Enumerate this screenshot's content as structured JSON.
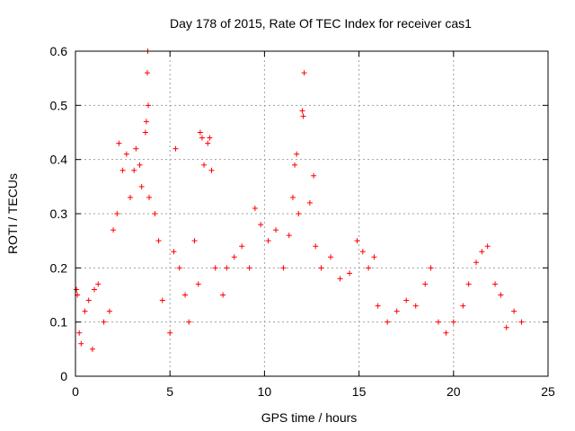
{
  "chart_data": {
    "type": "scatter",
    "title": "Day 178 of 2015, Rate Of TEC Index for receiver cas1",
    "xlabel": "GPS time / hours",
    "ylabel": "ROTI / TECUs",
    "xlim": [
      0,
      25
    ],
    "ylim": [
      0,
      0.6
    ],
    "grid": true,
    "x_ticks": [
      0,
      5,
      10,
      15,
      20,
      25
    ],
    "x_tick_labels": [
      "0",
      "5",
      "10",
      "15",
      "20",
      "25"
    ],
    "y_ticks": [
      0,
      0.1,
      0.2,
      0.3,
      0.4,
      0.5,
      0.6
    ],
    "y_tick_labels": [
      "0",
      "0.1",
      "0.2",
      "0.3",
      "0.4",
      "0.5",
      "0.6"
    ],
    "marker": "+",
    "color": "#ff0000",
    "series": [
      {
        "name": "ROTI",
        "points": [
          [
            0.05,
            0.16
          ],
          [
            0.1,
            0.15
          ],
          [
            0.2,
            0.08
          ],
          [
            0.3,
            0.06
          ],
          [
            0.5,
            0.12
          ],
          [
            0.7,
            0.14
          ],
          [
            0.9,
            0.05
          ],
          [
            1.0,
            0.16
          ],
          [
            1.2,
            0.17
          ],
          [
            1.5,
            0.1
          ],
          [
            1.8,
            0.12
          ],
          [
            2.0,
            0.27
          ],
          [
            2.2,
            0.3
          ],
          [
            2.3,
            0.43
          ],
          [
            2.5,
            0.38
          ],
          [
            2.7,
            0.41
          ],
          [
            2.9,
            0.33
          ],
          [
            3.1,
            0.38
          ],
          [
            3.2,
            0.42
          ],
          [
            3.4,
            0.39
          ],
          [
            3.5,
            0.35
          ],
          [
            3.7,
            0.45
          ],
          [
            3.75,
            0.47
          ],
          [
            3.8,
            0.56
          ],
          [
            3.82,
            0.6
          ],
          [
            3.85,
            0.5
          ],
          [
            3.9,
            0.33
          ],
          [
            4.2,
            0.3
          ],
          [
            4.4,
            0.25
          ],
          [
            4.6,
            0.14
          ],
          [
            5.0,
            0.08
          ],
          [
            5.2,
            0.23
          ],
          [
            5.3,
            0.42
          ],
          [
            5.5,
            0.2
          ],
          [
            5.8,
            0.15
          ],
          [
            6.0,
            0.1
          ],
          [
            6.3,
            0.25
          ],
          [
            6.5,
            0.17
          ],
          [
            6.6,
            0.45
          ],
          [
            6.7,
            0.44
          ],
          [
            6.8,
            0.39
          ],
          [
            7.0,
            0.43
          ],
          [
            7.1,
            0.44
          ],
          [
            7.2,
            0.38
          ],
          [
            7.4,
            0.2
          ],
          [
            7.8,
            0.15
          ],
          [
            8.0,
            0.2
          ],
          [
            8.4,
            0.22
          ],
          [
            8.8,
            0.24
          ],
          [
            9.2,
            0.2
          ],
          [
            9.5,
            0.31
          ],
          [
            9.8,
            0.28
          ],
          [
            10.2,
            0.25
          ],
          [
            10.6,
            0.27
          ],
          [
            11.0,
            0.2
          ],
          [
            11.3,
            0.26
          ],
          [
            11.5,
            0.33
          ],
          [
            11.6,
            0.39
          ],
          [
            11.7,
            0.41
          ],
          [
            11.8,
            0.3
          ],
          [
            12.0,
            0.49
          ],
          [
            12.1,
            0.56
          ],
          [
            12.05,
            0.48
          ],
          [
            12.4,
            0.32
          ],
          [
            12.6,
            0.37
          ],
          [
            12.7,
            0.24
          ],
          [
            13.0,
            0.2
          ],
          [
            13.5,
            0.22
          ],
          [
            14.0,
            0.18
          ],
          [
            14.5,
            0.19
          ],
          [
            14.9,
            0.25
          ],
          [
            15.2,
            0.23
          ],
          [
            15.5,
            0.2
          ],
          [
            15.8,
            0.22
          ],
          [
            16.0,
            0.13
          ],
          [
            16.5,
            0.1
          ],
          [
            17.0,
            0.12
          ],
          [
            17.5,
            0.14
          ],
          [
            18.0,
            0.13
          ],
          [
            18.5,
            0.17
          ],
          [
            18.8,
            0.2
          ],
          [
            19.2,
            0.1
          ],
          [
            19.6,
            0.08
          ],
          [
            20.0,
            0.1
          ],
          [
            20.5,
            0.13
          ],
          [
            20.8,
            0.17
          ],
          [
            21.2,
            0.21
          ],
          [
            21.5,
            0.23
          ],
          [
            21.8,
            0.24
          ],
          [
            22.2,
            0.17
          ],
          [
            22.5,
            0.15
          ],
          [
            22.8,
            0.09
          ],
          [
            23.2,
            0.12
          ],
          [
            23.6,
            0.1
          ]
        ]
      }
    ]
  }
}
